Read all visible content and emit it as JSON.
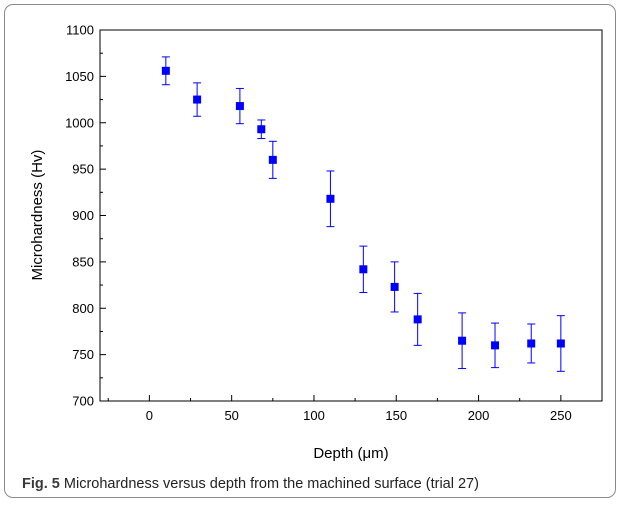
{
  "caption": {
    "label": "Fig. 5",
    "text": "Microhardness versus depth from the machined surface (trial 27)"
  },
  "chart_data": {
    "type": "scatter",
    "title": "",
    "xlabel": "Depth (μm)",
    "ylabel": "Microhardness (Hv)",
    "xlim": [
      -30,
      275
    ],
    "ylim": [
      700,
      1100
    ],
    "x_ticks": [
      0,
      50,
      100,
      150,
      200,
      250
    ],
    "y_ticks": [
      700,
      750,
      800,
      850,
      900,
      950,
      1000,
      1050,
      1100
    ],
    "grid": false,
    "legend": "none",
    "marker": "square",
    "color": "#0000ff",
    "series": [
      {
        "x": [
          10,
          29,
          55,
          68,
          75,
          110,
          130,
          149,
          163,
          190,
          210,
          232,
          250
        ],
        "y": [
          1056,
          1025,
          1018,
          993,
          960,
          918,
          842,
          823,
          788,
          765,
          760,
          762,
          762
        ],
        "error": [
          15,
          18,
          19,
          10,
          20,
          30,
          25,
          27,
          28,
          30,
          24,
          21,
          30
        ]
      }
    ]
  }
}
